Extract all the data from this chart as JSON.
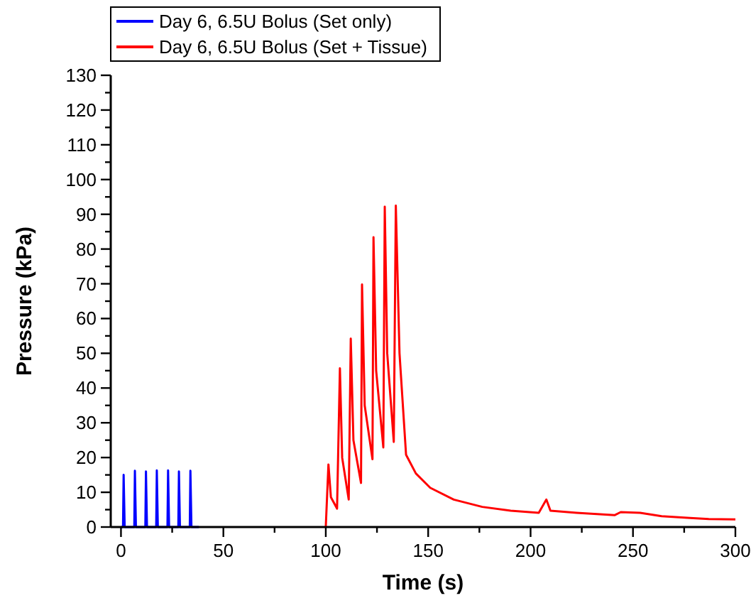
{
  "chart_data": {
    "type": "line",
    "xlabel": "Time (s)",
    "ylabel": "Pressure (kPa)",
    "xlim": [
      -5,
      300
    ],
    "ylim": [
      0,
      130
    ],
    "xticks": [
      0,
      {
        "value": 25,
        "label": null
      },
      50,
      {
        "value": 75,
        "label": null
      },
      100,
      {
        "value": 125,
        "label": null
      },
      150,
      {
        "value": 175,
        "label": null
      },
      200,
      {
        "value": 225,
        "label": null
      },
      250,
      {
        "value": 275,
        "label": null
      },
      300
    ],
    "yticks": [
      0,
      {
        "value": 5,
        "label": null
      },
      10,
      {
        "value": 15,
        "label": null
      },
      20,
      {
        "value": 25,
        "label": null
      },
      30,
      {
        "value": 35,
        "label": null
      },
      40,
      {
        "value": 45,
        "label": null
      },
      50,
      {
        "value": 55,
        "label": null
      },
      60,
      {
        "value": 65,
        "label": null
      },
      70,
      {
        "value": 75,
        "label": null
      },
      80,
      {
        "value": 85,
        "label": null
      },
      90,
      {
        "value": 95,
        "label": null
      },
      100,
      {
        "value": 105,
        "label": null
      },
      110,
      {
        "value": 115,
        "label": null
      },
      120,
      {
        "value": 125,
        "label": null
      },
      130
    ],
    "legend": "top left",
    "grid": false,
    "marker": "none",
    "line_style": "solid",
    "series": [
      {
        "name": "Day 6, 6.5U Bolus (Set only)",
        "color": "#0000ff",
        "x": [
          0,
          1,
          1.3,
          1.8,
          6.5,
          6.8,
          7.3,
          11.9,
          12.2,
          12.7,
          17.2,
          17.5,
          18,
          22.7,
          23,
          23.5,
          28,
          28.3,
          28.8,
          33.6,
          33.9,
          34.4,
          38
        ],
        "values": [
          0,
          0,
          15,
          0,
          0,
          16.2,
          0,
          0,
          16,
          0,
          0,
          16.3,
          0,
          0,
          16.3,
          0,
          0,
          16,
          0,
          0,
          16.2,
          0,
          0
        ]
      },
      {
        "name": "Day 6, 6.5U Bolus (Set + Tissue)",
        "color": "#ff0000",
        "x": [
          100,
          101.3,
          102.5,
          105.5,
          106.9,
          108,
          111.2,
          112.2,
          113.5,
          117.2,
          117.7,
          119,
          122.8,
          123.3,
          124.6,
          128.1,
          128.8,
          130,
          133.2,
          134.2,
          136,
          139.2,
          144,
          151,
          162.5,
          176.4,
          190.3,
          204,
          207.7,
          209.7,
          222.5,
          241,
          244,
          253.5,
          264,
          277.9,
          287,
          300
        ],
        "values": [
          0,
          18,
          8.6,
          5.3,
          45.7,
          20,
          7.9,
          54.2,
          25,
          12.7,
          69.8,
          35,
          19.5,
          83.4,
          45,
          22.9,
          92.2,
          50,
          24.5,
          92.5,
          50,
          20.8,
          15.4,
          11.3,
          7.9,
          5.8,
          4.7,
          4.1,
          7.9,
          4.7,
          4.1,
          3.4,
          4.3,
          4.1,
          3.1,
          2.6,
          2.3,
          2.2
        ]
      }
    ]
  }
}
